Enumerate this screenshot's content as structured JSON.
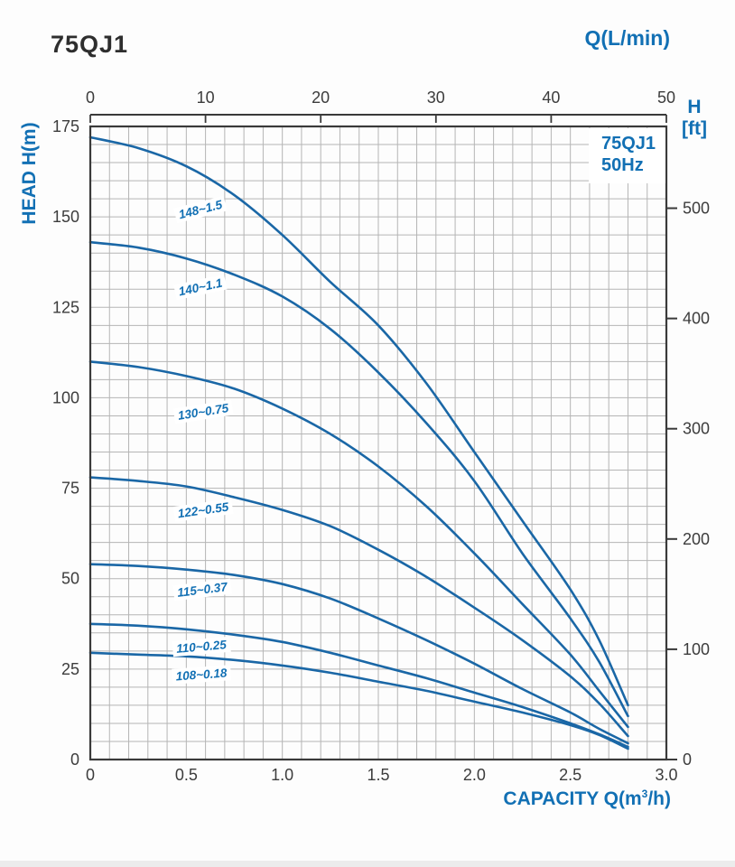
{
  "header": {
    "title": "75QJ1",
    "model_box_line1": "75QJ1",
    "model_box_line2": "50Hz"
  },
  "axes": {
    "top": {
      "title": "Q(L/min)",
      "ticks": [
        "0",
        "10",
        "20",
        "30",
        "40",
        "50"
      ],
      "range": [
        0,
        50
      ]
    },
    "bottom": {
      "title_pre": "CAPACITY Q(m",
      "title_sup": "3",
      "title_post": "/h)",
      "ticks": [
        "0",
        "0.5",
        "1.0",
        "1.5",
        "2.0",
        "2.5",
        "3.0"
      ],
      "range": [
        0,
        3.0
      ]
    },
    "left": {
      "title": "HEAD H(m)",
      "ticks": [
        "175",
        "150",
        "125",
        "100",
        "75",
        "50",
        "25",
        "0"
      ],
      "range": [
        0,
        175
      ]
    },
    "right": {
      "title_line1": "H",
      "title_line2": "[ft]",
      "ticks": [
        "500",
        "400",
        "300",
        "200",
        "100",
        "0"
      ],
      "unit": "ft"
    }
  },
  "chart_data": {
    "type": "line",
    "title": "75QJ1 50Hz",
    "xlabel": "CAPACITY Q(m³/h)",
    "ylabel": "HEAD H(m)",
    "x2label": "Q(L/min)",
    "y2label": "H [ft]",
    "xlim": [
      0,
      3.0
    ],
    "ylim": [
      0,
      175
    ],
    "x2lim": [
      0,
      50
    ],
    "y2lim": [
      0,
      574
    ],
    "grid": {
      "on": true,
      "x_step": 0.1,
      "y_step": 5
    },
    "legend_position": "none",
    "x": [
      0,
      0.25,
      0.5,
      0.75,
      1.0,
      1.25,
      1.5,
      1.75,
      2.0,
      2.25,
      2.5,
      2.65,
      2.8
    ],
    "series": [
      {
        "name": "148~1.5",
        "values": [
          172,
          169,
          164,
          156,
          145,
          132,
          120,
          104,
          85,
          66,
          47,
          33,
          15
        ]
      },
      {
        "name": "140~1.1",
        "values": [
          143,
          141.5,
          138.5,
          134,
          128,
          119,
          107,
          93,
          77,
          57,
          39,
          27,
          12
        ]
      },
      {
        "name": "130~0.75",
        "values": [
          110,
          108.5,
          106,
          102.5,
          97,
          90,
          81,
          70,
          57,
          43,
          29,
          19,
          9
        ]
      },
      {
        "name": "122~0.55",
        "values": [
          78,
          77,
          75.5,
          72.5,
          69,
          64.5,
          58,
          50.5,
          42,
          33,
          23,
          15.5,
          6.5
        ]
      },
      {
        "name": "115~0.37",
        "values": [
          54,
          53.5,
          52.5,
          51,
          48.5,
          44.5,
          39,
          33,
          26.5,
          19.5,
          13,
          8.5,
          4.5
        ]
      },
      {
        "name": "110~0.25",
        "values": [
          37.5,
          37,
          36,
          34.5,
          32.5,
          29.5,
          26,
          22.5,
          18.5,
          14.5,
          10,
          7,
          3.5
        ]
      },
      {
        "name": "108~0.18",
        "values": [
          29.5,
          29,
          28.5,
          27.5,
          26,
          24,
          21.5,
          19,
          16,
          13,
          9.5,
          6.8,
          3
        ]
      }
    ],
    "annotations": [
      {
        "text": "148~1.5",
        "q": 0.574,
        "h": 152.0,
        "rot": -14
      },
      {
        "text": "140~1.1",
        "q": 0.574,
        "h": 130.5,
        "rot": -12
      },
      {
        "text": "130~0.75",
        "q": 0.588,
        "h": 96.0,
        "rot": -9
      },
      {
        "text": "122~0.55",
        "q": 0.588,
        "h": 69.0,
        "rot": -8
      },
      {
        "text": "115~0.37",
        "q": 0.583,
        "h": 47.0,
        "rot": -7
      },
      {
        "text": "110~0.25",
        "q": 0.578,
        "h": 31.2,
        "rot": -5
      },
      {
        "text": "108~0.18",
        "q": 0.578,
        "h": 23.5,
        "rot": -4
      }
    ]
  },
  "colors": {
    "curve": "#1a67a6",
    "text_blue": "#1270b4",
    "tick_text": "#3c3c3c",
    "grid": "#b5b5b5",
    "box": "#3a3a3a",
    "title_text": "#2e2e2e"
  }
}
